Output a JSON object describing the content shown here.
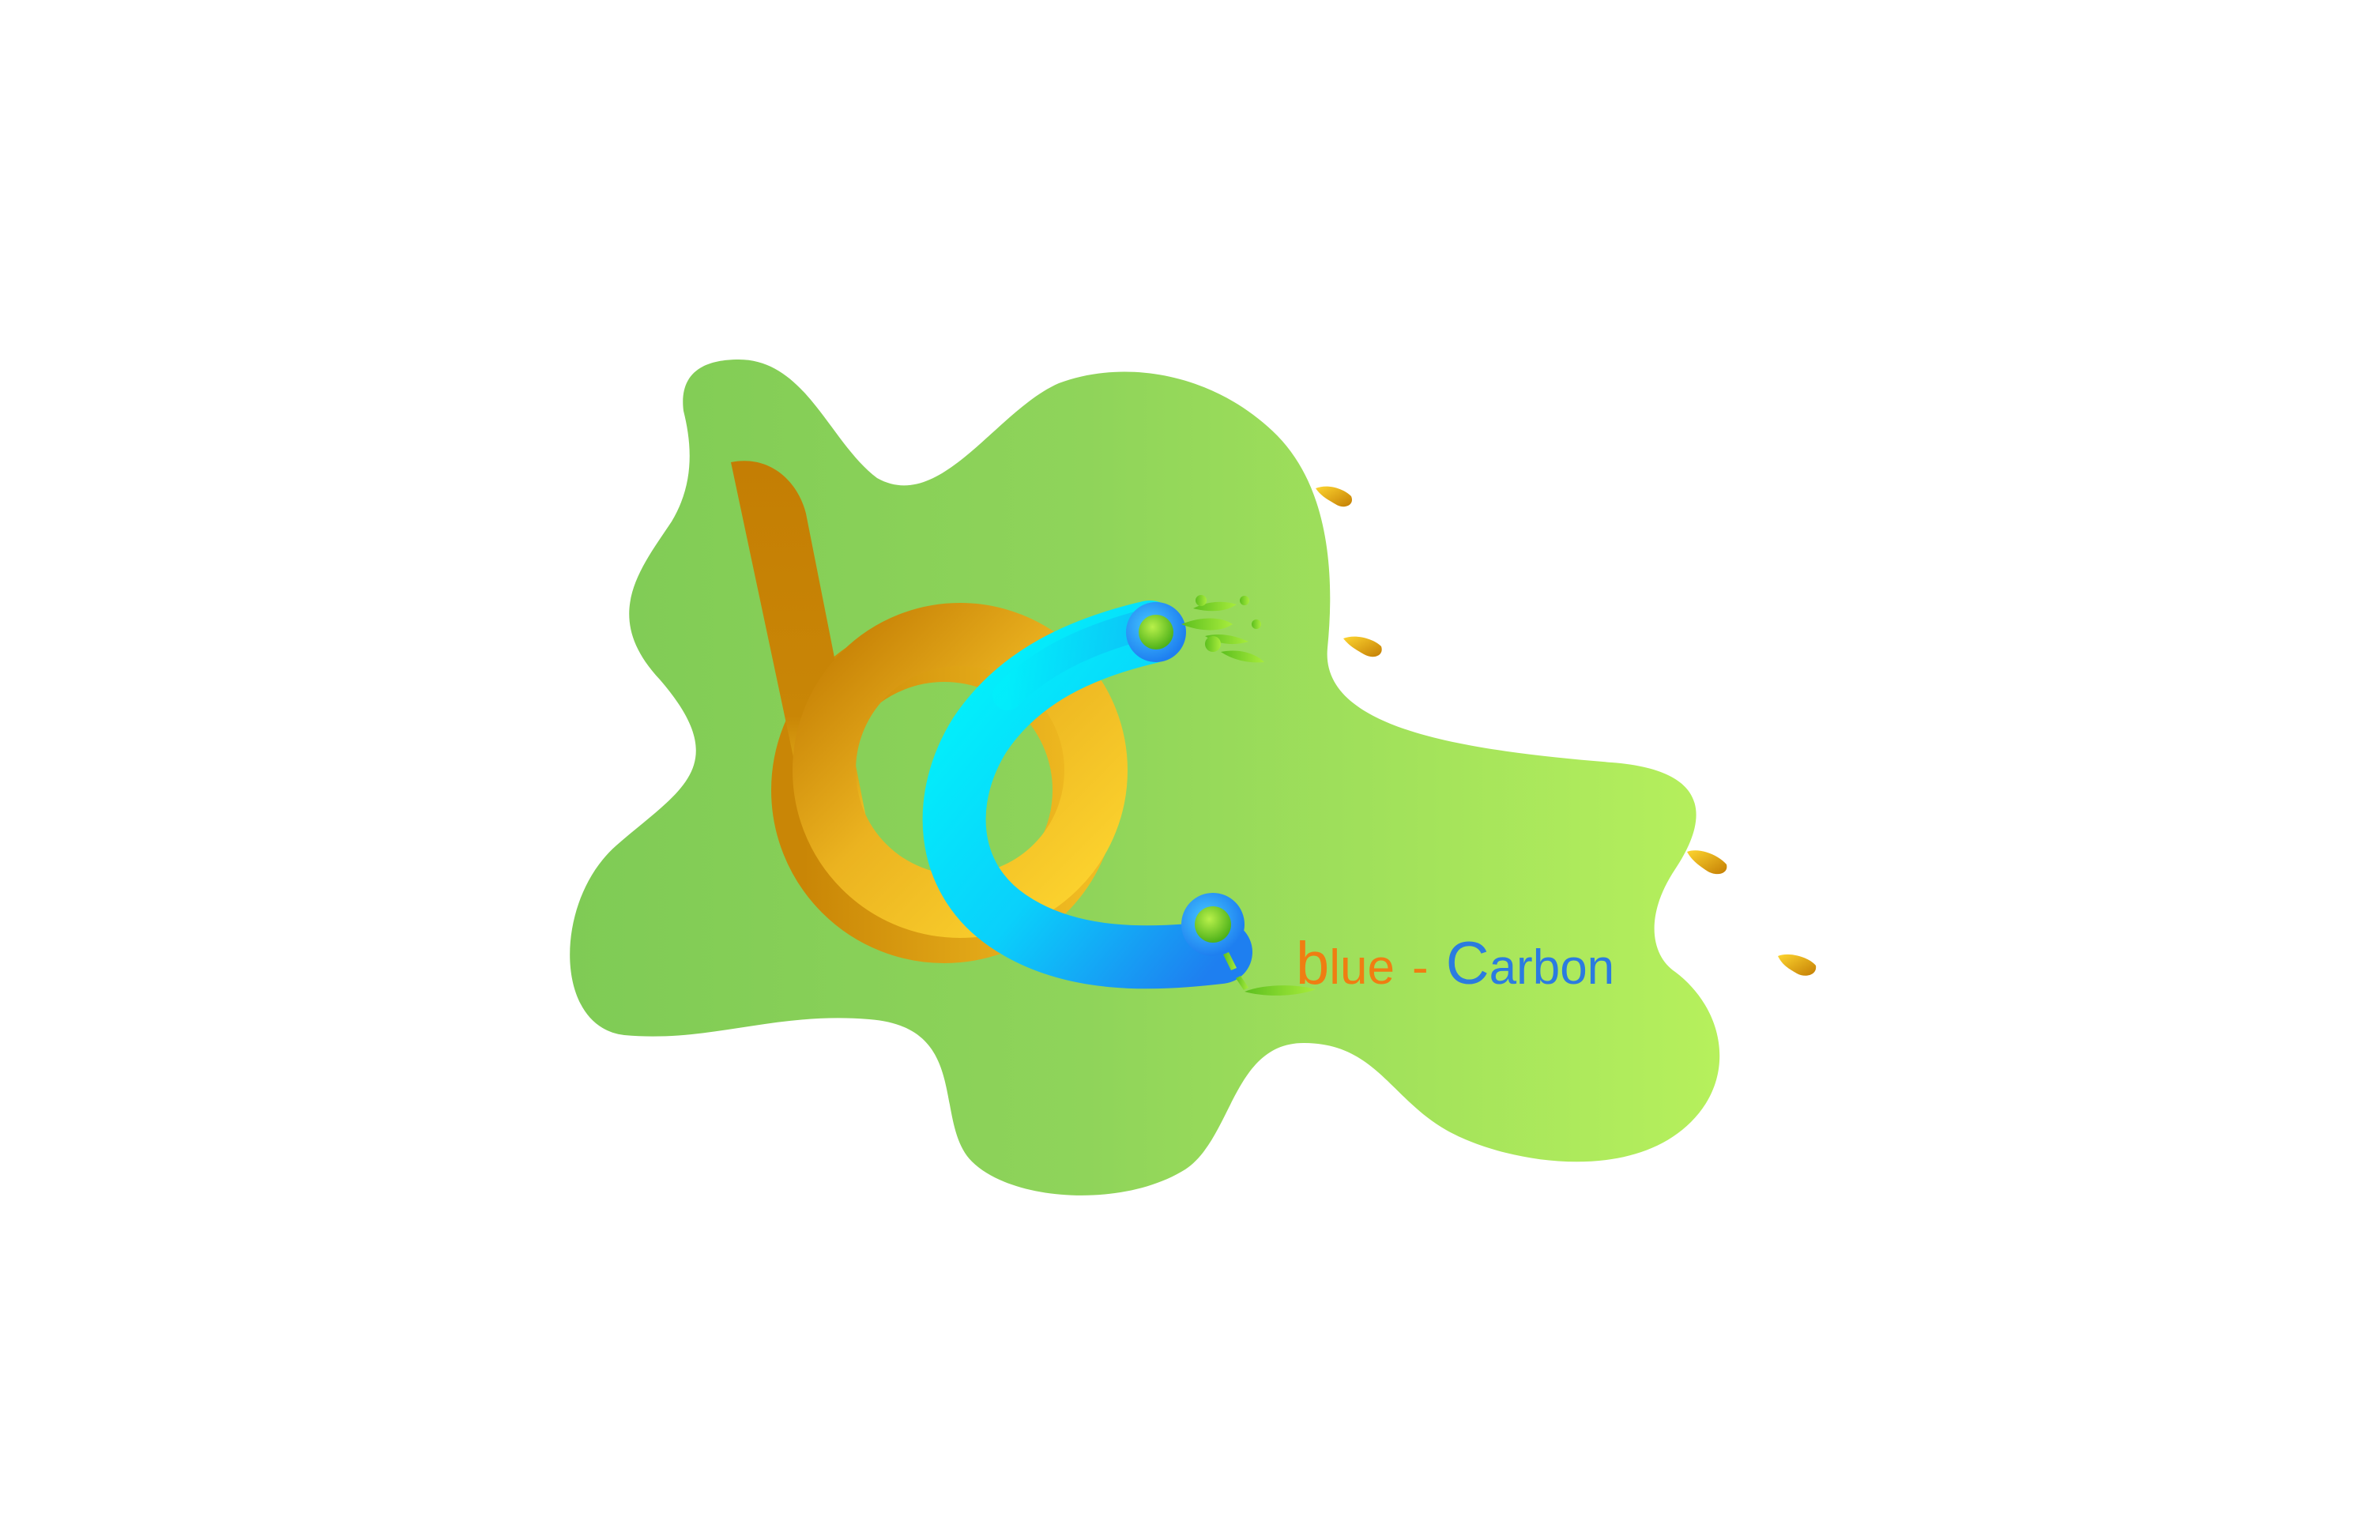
{
  "colors": {
    "background": "#ffffff",
    "blob_start": "#7fcb55",
    "blob_end": "#b6f05c",
    "b_dark": "#c47e04",
    "b_light": "#fdd52f",
    "c_cyan": "#00f7fb",
    "c_blue": "#1e7ff0",
    "node_green": "#7ed321",
    "wordmark_orange": "#f07d12",
    "wordmark_blue": "#2b7be0"
  },
  "logo": {
    "monogram_icon": "bc-monogram-icon",
    "splash_icon": "paint-splash-icon",
    "droplet_icon": "droplet-icon",
    "wordmark": {
      "b_letter": "b",
      "b_rest": "lue",
      "separator": "-",
      "c_letter": "C",
      "c_rest": "arbon"
    }
  }
}
